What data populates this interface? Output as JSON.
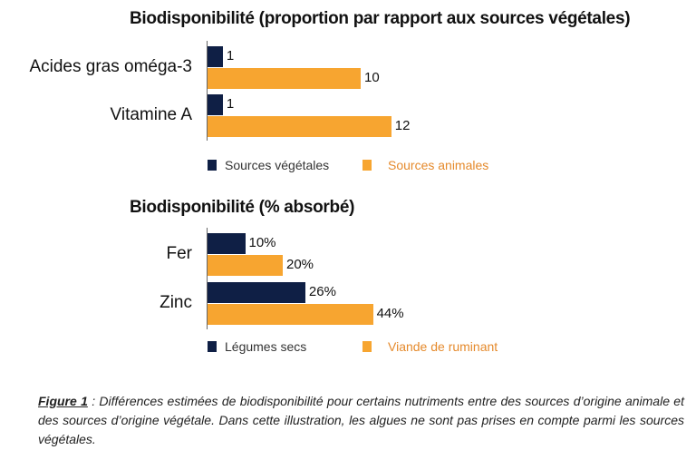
{
  "colors": {
    "dark": "#0f1f45",
    "orange": "#f7a530",
    "orange_text": "#e58a2c"
  },
  "chart_data": [
    {
      "type": "bar",
      "orientation": "horizontal",
      "title": "Biodisponibilité (proportion par rapport aux sources végétales)",
      "categories": [
        "Acides gras oméga-3",
        "Vitamine A"
      ],
      "series": [
        {
          "name": "Sources végétales",
          "values": [
            1,
            1
          ],
          "labels": [
            "1",
            "1"
          ]
        },
        {
          "name": "Sources animales",
          "values": [
            10,
            12
          ],
          "labels": [
            "10",
            "12"
          ]
        }
      ],
      "legend": "bottom"
    },
    {
      "type": "bar",
      "orientation": "horizontal",
      "title": "Biodisponibilité (% absorbé)",
      "categories": [
        "Fer",
        "Zinc"
      ],
      "series": [
        {
          "name": "Légumes secs",
          "values": [
            10,
            26
          ],
          "labels": [
            "10%",
            "26%"
          ]
        },
        {
          "name": "Viande de ruminant",
          "values": [
            20,
            44
          ],
          "labels": [
            "20%",
            "44%"
          ]
        }
      ],
      "legend": "bottom"
    }
  ],
  "caption": {
    "figure_label": "Figure 1",
    "text": " : Différences estimées de biodisponibilité pour certains nutriments entre des sources d’origine animale et des sources d’origine végétale. Dans cette illustration, les algues ne sont pas prises en compte parmi les sources végétales."
  }
}
